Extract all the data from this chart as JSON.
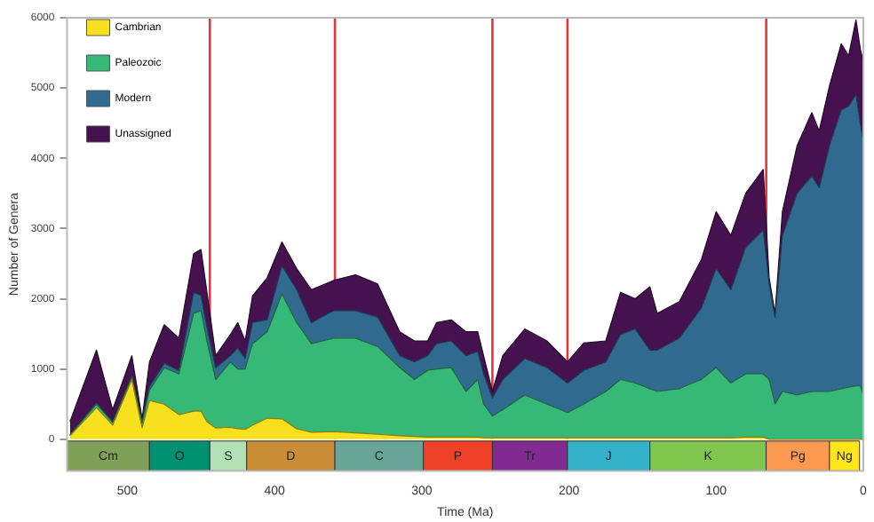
{
  "chart_data": {
    "type": "area",
    "stacked": true,
    "xlabel": "Time (Ma)",
    "ylabel": "Number of Genera",
    "x": [
      539,
      521,
      510,
      497,
      490,
      485,
      475,
      465,
      455,
      450,
      446,
      440,
      430,
      425,
      420,
      415,
      405,
      395,
      385,
      375,
      360,
      345,
      330,
      315,
      305,
      296,
      290,
      280,
      270,
      262,
      258,
      252,
      245,
      230,
      215,
      201,
      190,
      175,
      165,
      155,
      145,
      140,
      125,
      110,
      100,
      90,
      80,
      68,
      64,
      60,
      55,
      45,
      35,
      30,
      23,
      15,
      10,
      5,
      2,
      0
    ],
    "series": [
      {
        "name": "Cambrian",
        "color": "#f7e11e",
        "values": [
          50,
          450,
          200,
          850,
          160,
          550,
          500,
          350,
          400,
          400,
          250,
          160,
          170,
          150,
          140,
          200,
          300,
          290,
          150,
          100,
          110,
          90,
          70,
          50,
          40,
          30,
          30,
          30,
          30,
          30,
          20,
          20,
          20,
          20,
          20,
          20,
          20,
          20,
          20,
          20,
          20,
          20,
          20,
          20,
          20,
          20,
          30,
          30,
          0,
          0,
          0,
          0,
          0,
          0,
          0,
          0,
          0,
          0,
          0,
          0
        ]
      },
      {
        "name": "Paleozoic",
        "color": "#36b877",
        "values": [
          10,
          50,
          40,
          30,
          70,
          150,
          520,
          580,
          1390,
          1430,
          1150,
          690,
          930,
          850,
          860,
          1160,
          1230,
          1780,
          1510,
          1260,
          1330,
          1350,
          1250,
          970,
          810,
          950,
          970,
          990,
          650,
          820,
          480,
          310,
          400,
          610,
          480,
          360,
          480,
          660,
          830,
          780,
          700,
          660,
          700,
          830,
          1000,
          780,
          900,
          900,
          850,
          500,
          680,
          630,
          680,
          680,
          680,
          720,
          740,
          760,
          760,
          630
        ]
      },
      {
        "name": "Modern",
        "color": "#306a8e",
        "values": [
          0,
          20,
          10,
          20,
          20,
          50,
          60,
          50,
          300,
          220,
          200,
          170,
          90,
          300,
          150,
          300,
          170,
          400,
          470,
          300,
          390,
          390,
          420,
          170,
          250,
          210,
          360,
          380,
          510,
          400,
          430,
          260,
          430,
          520,
          520,
          420,
          480,
          420,
          640,
          770,
          550,
          590,
          720,
          1020,
          1410,
          1330,
          1800,
          2050,
          1360,
          1240,
          2220,
          2870,
          3070,
          2900,
          3500,
          3970,
          4000,
          4150,
          3720,
          3630
        ]
      },
      {
        "name": "Unassigned",
        "color": "#45114f",
        "values": [
          190,
          750,
          170,
          290,
          40,
          350,
          550,
          460,
          550,
          650,
          500,
          170,
          300,
          360,
          250,
          380,
          600,
          340,
          300,
          470,
          430,
          510,
          470,
          340,
          300,
          210,
          300,
          300,
          340,
          280,
          260,
          90,
          340,
          420,
          380,
          300,
          390,
          300,
          600,
          430,
          900,
          520,
          520,
          690,
          810,
          770,
          770,
          860,
          90,
          50,
          340,
          680,
          900,
          810,
          850,
          940,
          720,
          1060,
          1070,
          1120
        ]
      }
    ],
    "xlim": [
      541,
      0
    ],
    "xticks": [
      500,
      400,
      300,
      200,
      100,
      0
    ],
    "ylim": [
      -450,
      6000
    ],
    "yticks": [
      0,
      1000,
      2000,
      3000,
      4000,
      5000,
      6000
    ],
    "ref_lines": [
      {
        "axis": "x",
        "value": 444,
        "color": "#e8333a"
      },
      {
        "axis": "x",
        "value": 359,
        "color": "#e8333a"
      },
      {
        "axis": "x",
        "value": 252,
        "color": "#e8333a"
      },
      {
        "axis": "x",
        "value": 201,
        "color": "#e8333a"
      },
      {
        "axis": "x",
        "value": 66,
        "color": "#e8333a"
      }
    ],
    "bands": [
      {
        "axis": "x",
        "from": 541,
        "to": 485,
        "label": "Cm",
        "color": "#7fa056"
      },
      {
        "axis": "x",
        "from": 485,
        "to": 444,
        "label": "O",
        "color": "#009270"
      },
      {
        "axis": "x",
        "from": 444,
        "to": 419,
        "label": "S",
        "color": "#b3e1b6"
      },
      {
        "axis": "x",
        "from": 419,
        "to": 359,
        "label": "D",
        "color": "#cb8c37"
      },
      {
        "axis": "x",
        "from": 359,
        "to": 299,
        "label": "C",
        "color": "#67a599"
      },
      {
        "axis": "x",
        "from": 299,
        "to": 252,
        "label": "P",
        "color": "#f04028"
      },
      {
        "axis": "x",
        "from": 252,
        "to": 201,
        "label": "Tr",
        "color": "#812b92"
      },
      {
        "axis": "x",
        "from": 201,
        "to": 145,
        "label": "J",
        "color": "#34b2c9"
      },
      {
        "axis": "x",
        "from": 145,
        "to": 66,
        "label": "K",
        "color": "#7fc64e"
      },
      {
        "axis": "x",
        "from": 66,
        "to": 23,
        "label": "Pg",
        "color": "#fd9a52"
      },
      {
        "axis": "x",
        "from": 23,
        "to": 2.6,
        "label": "Ng",
        "color": "#ffe619"
      }
    ],
    "legend": "top left",
    "grid": false,
    "marker": "none"
  }
}
